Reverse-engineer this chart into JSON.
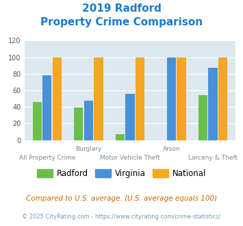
{
  "title_line1": "2019 Radford",
  "title_line2": "Property Crime Comparison",
  "categories": [
    "All Property Crime",
    "Burglary",
    "Motor Vehicle Theft",
    "Arson",
    "Larceny & Theft"
  ],
  "x_labels_top": [
    "",
    "Burglary",
    "",
    "Arson",
    ""
  ],
  "x_labels_bottom": [
    "All Property Crime",
    "",
    "Motor Vehicle Theft",
    "",
    "Larceny & Theft"
  ],
  "radford": [
    46,
    39,
    7,
    0,
    54
  ],
  "virginia": [
    78,
    48,
    56,
    100,
    87
  ],
  "national": [
    100,
    100,
    100,
    100,
    100
  ],
  "radford_color": "#6abf4b",
  "virginia_color": "#4a90d9",
  "national_color": "#f5a623",
  "bg_color": "#dce9f0",
  "ylim": [
    0,
    120
  ],
  "yticks": [
    0,
    20,
    40,
    60,
    80,
    100,
    120
  ],
  "legend_labels": [
    "Radford",
    "Virginia",
    "National"
  ],
  "footnote1": "Compared to U.S. average. (U.S. average equals 100)",
  "footnote2": "© 2025 CityRating.com - https://www.cityrating.com/crime-statistics/",
  "title_color": "#1a7acc",
  "footnote1_color": "#cc6600",
  "footnote2_color": "#7799aa"
}
